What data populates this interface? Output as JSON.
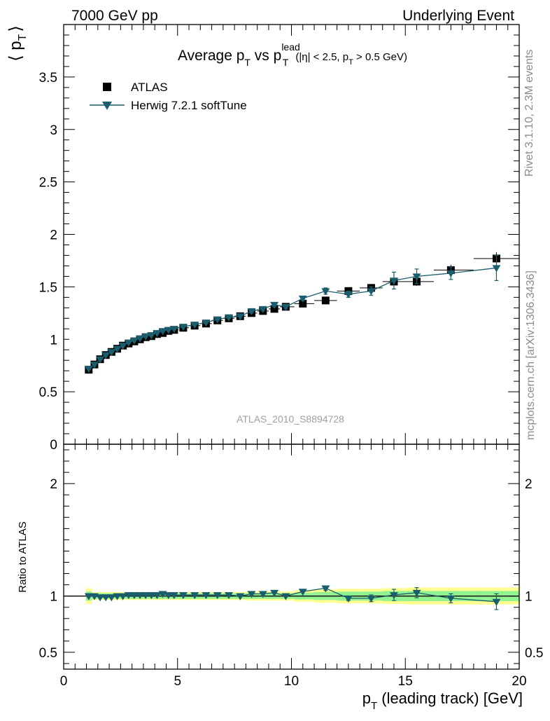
{
  "header": {
    "left": "7000 GeV pp",
    "right": "Underlying Event"
  },
  "side_text": {
    "rivet": "Rivet 3.1.10,  2.3M events",
    "mcplots": "mcplots.cern.ch [arXiv:1306.3436]"
  },
  "watermark": "ATLAS_2010_S8894728",
  "title": {
    "prefix": "Average p",
    "sub1": "T",
    "mid": " vs p",
    "sup": "lead",
    "sub2": "T",
    "cut_a": "(|η| < 2.5, p",
    "cut_sub": "T",
    "cut_b": " > 0.5 GeV)"
  },
  "ylabel": {
    "left": "⟨ p",
    "sub": "T",
    "right": "⟩"
  },
  "xlabel": {
    "main": "p",
    "sub": "T",
    "rest": " (leading track) [GeV]"
  },
  "ratio_ylabel": "Ratio to ATLAS",
  "legend": {
    "data": "ATLAS",
    "mc": "Herwig 7.2.1 softTune"
  },
  "colors": {
    "data": "#000000",
    "mc": "#1a5e6e",
    "band_inner": "#90f290",
    "band_outer": "#ffff90"
  },
  "chart_data": {
    "type": "scatter",
    "xlim": [
      0,
      20
    ],
    "main_ylim": [
      0,
      4
    ],
    "ratio_ylim": [
      0.35,
      2.35
    ],
    "main_yticks": [
      {
        "v": 0,
        "label": "0"
      },
      {
        "v": 0.5,
        "label": "0.5"
      },
      {
        "v": 1,
        "label": "1"
      },
      {
        "v": 1.5,
        "label": "1.5"
      },
      {
        "v": 2,
        "label": "2"
      },
      {
        "v": 2.5,
        "label": "2.5"
      },
      {
        "v": 3,
        "label": "3"
      },
      {
        "v": 3.5,
        "label": "3.5"
      }
    ],
    "ratio_yticks": [
      {
        "v": 0.5,
        "label": "0.5"
      },
      {
        "v": 1,
        "label": "1"
      },
      {
        "v": 2,
        "label": "2"
      }
    ],
    "xticks": [
      {
        "v": 0,
        "label": "0"
      },
      {
        "v": 5,
        "label": "5"
      },
      {
        "v": 10,
        "label": "10"
      },
      {
        "v": 15,
        "label": "15"
      },
      {
        "v": 20,
        "label": "20"
      }
    ],
    "x": [
      1.1,
      1.35,
      1.6,
      1.85,
      2.1,
      2.35,
      2.6,
      2.85,
      3.1,
      3.35,
      3.6,
      3.85,
      4.1,
      4.35,
      4.6,
      4.85,
      5.25,
      5.75,
      6.25,
      6.75,
      7.25,
      7.75,
      8.25,
      8.75,
      9.25,
      9.75,
      10.5,
      11.5,
      12.5,
      13.5,
      14.5,
      15.5,
      17.0,
      19.0
    ],
    "series": [
      {
        "name": "ATLAS",
        "y": [
          0.71,
          0.76,
          0.81,
          0.85,
          0.88,
          0.91,
          0.94,
          0.96,
          0.98,
          1.0,
          1.02,
          1.03,
          1.05,
          1.06,
          1.08,
          1.09,
          1.11,
          1.13,
          1.15,
          1.18,
          1.2,
          1.22,
          1.25,
          1.27,
          1.29,
          1.31,
          1.34,
          1.37,
          1.46,
          1.49,
          1.55,
          1.55,
          1.66,
          1.77
        ],
        "err": [
          0.01,
          0.01,
          0.01,
          0.01,
          0.01,
          0.01,
          0.01,
          0.01,
          0.01,
          0.01,
          0.01,
          0.01,
          0.01,
          0.01,
          0.01,
          0.01,
          0.01,
          0.01,
          0.01,
          0.01,
          0.01,
          0.01,
          0.015,
          0.015,
          0.02,
          0.02,
          0.02,
          0.02,
          0.03,
          0.03,
          0.04,
          0.04,
          0.05,
          0.06
        ]
      },
      {
        "name": "Herwig 7.2.1 softTune",
        "y": [
          0.72,
          0.76,
          0.81,
          0.85,
          0.88,
          0.91,
          0.94,
          0.97,
          0.99,
          1.01,
          1.03,
          1.04,
          1.06,
          1.08,
          1.09,
          1.1,
          1.12,
          1.14,
          1.16,
          1.19,
          1.21,
          1.22,
          1.27,
          1.29,
          1.33,
          1.31,
          1.39,
          1.46,
          1.43,
          1.46,
          1.56,
          1.6,
          1.63,
          1.68
        ],
        "err": [
          0.005,
          0.005,
          0.005,
          0.005,
          0.005,
          0.005,
          0.005,
          0.005,
          0.005,
          0.005,
          0.005,
          0.005,
          0.005,
          0.005,
          0.01,
          0.01,
          0.01,
          0.01,
          0.01,
          0.01,
          0.015,
          0.015,
          0.02,
          0.02,
          0.02,
          0.02,
          0.02,
          0.03,
          0.03,
          0.04,
          0.08,
          0.07,
          0.06,
          0.12
        ]
      }
    ],
    "ratio": {
      "y": [
        1.0,
        1.0,
        0.99,
        0.99,
        0.99,
        1.0,
        1.0,
        1.01,
        1.01,
        1.01,
        1.01,
        1.01,
        1.01,
        1.02,
        1.01,
        1.01,
        1.01,
        1.01,
        1.01,
        1.01,
        1.01,
        1.0,
        1.02,
        1.02,
        1.03,
        1.0,
        1.04,
        1.07,
        0.98,
        0.98,
        1.01,
        1.03,
        0.98,
        0.95
      ],
      "err": [
        0.005,
        0.005,
        0.005,
        0.005,
        0.005,
        0.005,
        0.005,
        0.005,
        0.005,
        0.005,
        0.005,
        0.005,
        0.005,
        0.005,
        0.005,
        0.005,
        0.005,
        0.005,
        0.005,
        0.005,
        0.01,
        0.01,
        0.01,
        0.01,
        0.015,
        0.015,
        0.015,
        0.02,
        0.02,
        0.03,
        0.05,
        0.045,
        0.04,
        0.07
      ],
      "band_inner": [
        0.04,
        0.025,
        0.025,
        0.025,
        0.025,
        0.025,
        0.025,
        0.025,
        0.025,
        0.025,
        0.025,
        0.025,
        0.025,
        0.025,
        0.025,
        0.025,
        0.025,
        0.025,
        0.025,
        0.025,
        0.025,
        0.025,
        0.025,
        0.025,
        0.025,
        0.025,
        0.03,
        0.035,
        0.04,
        0.04,
        0.045,
        0.045,
        0.045,
        0.045
      ],
      "band_outer": [
        0.07,
        0.035,
        0.035,
        0.035,
        0.035,
        0.035,
        0.035,
        0.035,
        0.035,
        0.035,
        0.035,
        0.035,
        0.035,
        0.035,
        0.035,
        0.035,
        0.035,
        0.035,
        0.035,
        0.035,
        0.035,
        0.035,
        0.04,
        0.04,
        0.04,
        0.04,
        0.05,
        0.06,
        0.065,
        0.065,
        0.07,
        0.075,
        0.075,
        0.075
      ]
    }
  }
}
